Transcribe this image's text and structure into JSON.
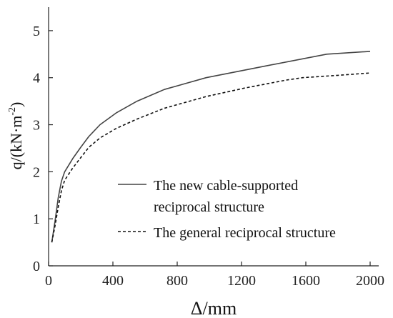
{
  "chart_data": {
    "type": "line",
    "xlabel": "Δ/mm",
    "ylabel_main": "q/(kN·m",
    "ylabel_sup": "-2",
    "ylabel_tail": ")",
    "xlim": [
      0,
      2000
    ],
    "ylim": [
      0,
      5.5
    ],
    "xticks": [
      0,
      400,
      800,
      1200,
      1600,
      2000
    ],
    "yticks": [
      0,
      1,
      2,
      3,
      4,
      5
    ],
    "grid": false,
    "legend_position": "center-right",
    "series": [
      {
        "name": "The new cable-supported reciprocal structure",
        "legend_lines": [
          "The new cable-supported",
          "reciprocal structure"
        ],
        "style": "solid",
        "color": "#444444",
        "x": [
          20,
          40,
          60,
          80,
          100,
          150,
          200,
          250,
          320,
          420,
          550,
          720,
          980,
          1350,
          1730,
          2000
        ],
        "y": [
          0.5,
          0.95,
          1.45,
          1.8,
          2.0,
          2.28,
          2.52,
          2.75,
          3.0,
          3.25,
          3.5,
          3.75,
          4.0,
          4.25,
          4.5,
          4.56
        ]
      },
      {
        "name": "The general reciprocal structure",
        "legend_lines": [
          "The general reciprocal structure"
        ],
        "style": "dashed",
        "color": "#111111",
        "x": [
          20,
          40,
          60,
          80,
          100,
          150,
          200,
          250,
          320,
          420,
          550,
          720,
          980,
          1220,
          1480,
          1580,
          1800,
          2000
        ],
        "y": [
          0.5,
          0.85,
          1.25,
          1.6,
          1.82,
          2.08,
          2.3,
          2.52,
          2.72,
          2.92,
          3.12,
          3.35,
          3.6,
          3.78,
          3.95,
          4.0,
          4.05,
          4.1
        ]
      }
    ]
  }
}
